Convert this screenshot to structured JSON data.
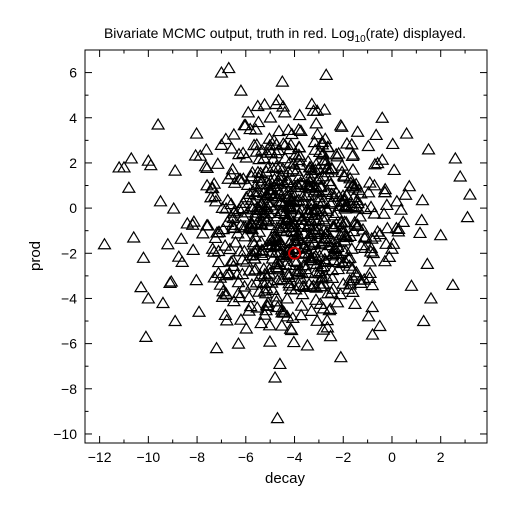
{
  "chart_data": {
    "type": "scatter",
    "title": "Bivariate MCMC output, truth in red. Log",
    "title_subscript": "10",
    "title_suffix": "(rate) displayed.",
    "xlabel": "decay",
    "ylabel": "prod",
    "xlim": [
      -12.6,
      3.9
    ],
    "ylim": [
      -10.4,
      7.0
    ],
    "xticks": [
      -12,
      -10,
      -8,
      -6,
      -4,
      -2,
      0,
      2
    ],
    "yticks": [
      -10,
      -8,
      -6,
      -4,
      -2,
      0,
      2,
      4,
      6
    ],
    "grid": false,
    "marker": "open-triangle",
    "marker_color": "#000000",
    "truth": {
      "x": -4.0,
      "y": -2.0,
      "color": "#cc0000",
      "marker": "open-circle"
    },
    "outliers": [
      {
        "x": -11.8,
        "y": -1.6
      },
      {
        "x": -11.2,
        "y": 1.8
      },
      {
        "x": -11.0,
        "y": 1.8
      },
      {
        "x": -10.7,
        "y": 2.2
      },
      {
        "x": -10.8,
        "y": 0.9
      },
      {
        "x": -10.6,
        "y": -1.3
      },
      {
        "x": -10.2,
        "y": -2.2
      },
      {
        "x": -10.0,
        "y": 2.1
      },
      {
        "x": -9.9,
        "y": 1.9
      },
      {
        "x": -10.3,
        "y": -3.5
      },
      {
        "x": -10.0,
        "y": -4.0
      },
      {
        "x": -10.1,
        "y": -5.7
      },
      {
        "x": -9.6,
        "y": 3.7
      },
      {
        "x": -9.5,
        "y": 0.3
      },
      {
        "x": -9.4,
        "y": -4.2
      },
      {
        "x": -9.2,
        "y": -1.6
      },
      {
        "x": -8.9,
        "y": -5.0
      },
      {
        "x": -7.0,
        "y": 6.0
      },
      {
        "x": -6.7,
        "y": 6.2
      },
      {
        "x": -6.2,
        "y": 5.2
      },
      {
        "x": -4.5,
        "y": 5.6
      },
      {
        "x": -2.7,
        "y": 5.9
      },
      {
        "x": -4.7,
        "y": -9.3
      },
      {
        "x": -4.8,
        "y": -7.5
      },
      {
        "x": -4.6,
        "y": -6.9
      },
      {
        "x": -2.1,
        "y": -6.6
      },
      {
        "x": -0.4,
        "y": 4.0
      },
      {
        "x": 0.6,
        "y": 3.3
      },
      {
        "x": 1.5,
        "y": 2.6
      },
      {
        "x": 2.6,
        "y": 2.2
      },
      {
        "x": 2.8,
        "y": 1.4
      },
      {
        "x": 3.2,
        "y": 0.6
      },
      {
        "x": 3.1,
        "y": -0.4
      },
      {
        "x": 2.0,
        "y": -1.2
      },
      {
        "x": 2.5,
        "y": -3.4
      },
      {
        "x": 1.3,
        "y": -5.0
      },
      {
        "x": 1.6,
        "y": -4.0
      },
      {
        "x": -0.8,
        "y": -5.6
      },
      {
        "x": -7.2,
        "y": -6.2
      },
      {
        "x": -6.3,
        "y": -6.0
      }
    ],
    "core": {
      "n": 760,
      "center": [
        -4.0,
        -0.7
      ],
      "sd": [
        2.0,
        2.35
      ]
    }
  }
}
